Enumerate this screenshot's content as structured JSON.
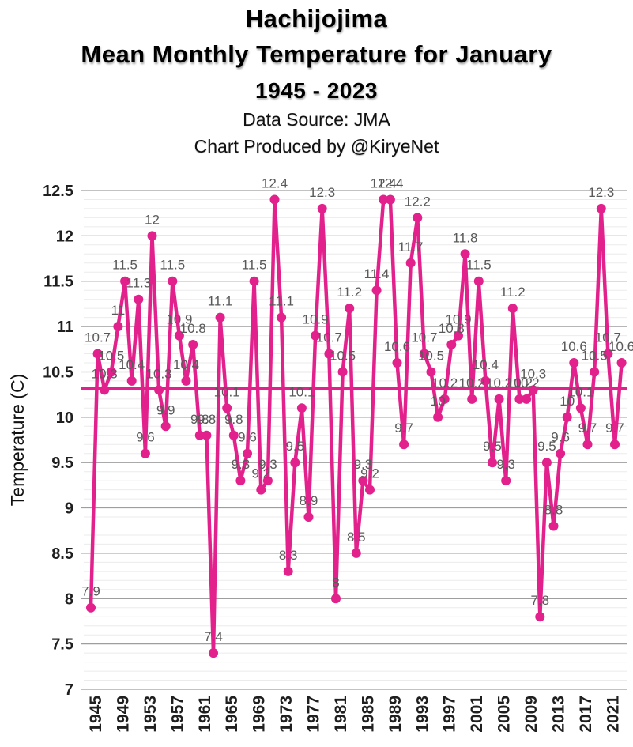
{
  "header": {
    "title_line1": "Hachijojima",
    "title_line2": "Mean Monthly Temperature for January",
    "title_line3": "1945 - 2023",
    "subtitle_line1": "Data Source: JMA",
    "subtitle_line2": "Chart Produced by @KiryeNet"
  },
  "chart_data": {
    "type": "line",
    "title": "Hachijojima Mean Monthly Temperature for January 1945 - 2023",
    "xlabel": "",
    "ylabel": "Temperature (C)",
    "ylim": [
      7,
      12.5
    ],
    "y_major_step": 0.5,
    "y_minor_step": 0.1,
    "grid": true,
    "legend": "none",
    "marker": "circle",
    "data_labels": true,
    "mean_line_value": 10.32,
    "y_tick_labels": [
      "12.5",
      "12",
      "11.5",
      "11",
      "10.5",
      "10",
      "9.5",
      "9",
      "8.5",
      "8",
      "7.5",
      "7"
    ],
    "x_tick_labels": [
      "1945",
      "1949",
      "1953",
      "1957",
      "1961",
      "1965",
      "1969",
      "1973",
      "1977",
      "1981",
      "1985",
      "1989",
      "1993",
      "1997",
      "2001",
      "2005",
      "2009",
      "2013",
      "2017",
      "2021"
    ],
    "x": [
      1945,
      1946,
      1947,
      1948,
      1949,
      1950,
      1951,
      1952,
      1953,
      1954,
      1955,
      1956,
      1957,
      1958,
      1959,
      1960,
      1961,
      1962,
      1963,
      1964,
      1965,
      1966,
      1967,
      1968,
      1969,
      1970,
      1971,
      1972,
      1973,
      1974,
      1975,
      1976,
      1977,
      1978,
      1979,
      1980,
      1981,
      1982,
      1983,
      1984,
      1985,
      1986,
      1987,
      1988,
      1989,
      1990,
      1991,
      1992,
      1993,
      1994,
      1995,
      1996,
      1997,
      1998,
      1999,
      2000,
      2001,
      2002,
      2003,
      2004,
      2005,
      2006,
      2007,
      2008,
      2009,
      2010,
      2011,
      2012,
      2013,
      2014,
      2015,
      2016,
      2017,
      2018,
      2019,
      2020,
      2021,
      2022,
      2023
    ],
    "values": [
      7.9,
      10.7,
      10.3,
      10.5,
      11,
      11.5,
      10.4,
      11.3,
      9.6,
      12,
      10.3,
      9.9,
      11.5,
      10.9,
      10.4,
      10.8,
      9.8,
      9.8,
      7.4,
      11.1,
      10.1,
      9.8,
      9.3,
      9.6,
      11.5,
      9.2,
      9.3,
      12.4,
      11.1,
      8.3,
      9.5,
      10.1,
      8.9,
      10.9,
      12.3,
      10.7,
      8,
      10.5,
      11.2,
      8.5,
      9.3,
      9.2,
      11.4,
      12.4,
      12.4,
      10.6,
      9.7,
      11.7,
      12.2,
      10.7,
      10.5,
      10,
      10.2,
      10.8,
      10.9,
      11.8,
      10.2,
      11.5,
      10.4,
      9.5,
      10.2,
      9.3,
      11.2,
      10.2,
      10.2,
      10.3,
      7.8,
      9.5,
      8.8,
      9.6,
      10,
      10.6,
      10.1,
      9.7,
      10.5,
      12.3,
      10.7,
      9.7,
      10.6
    ],
    "colors": {
      "series": "#E2218C",
      "mean_line": "#E2218C",
      "data_label": "#595959",
      "axis_text": "#1f1f1f",
      "major_grid": "#9e9e9e",
      "minor_grid": "#ebebeb",
      "background": "#ffffff"
    }
  }
}
